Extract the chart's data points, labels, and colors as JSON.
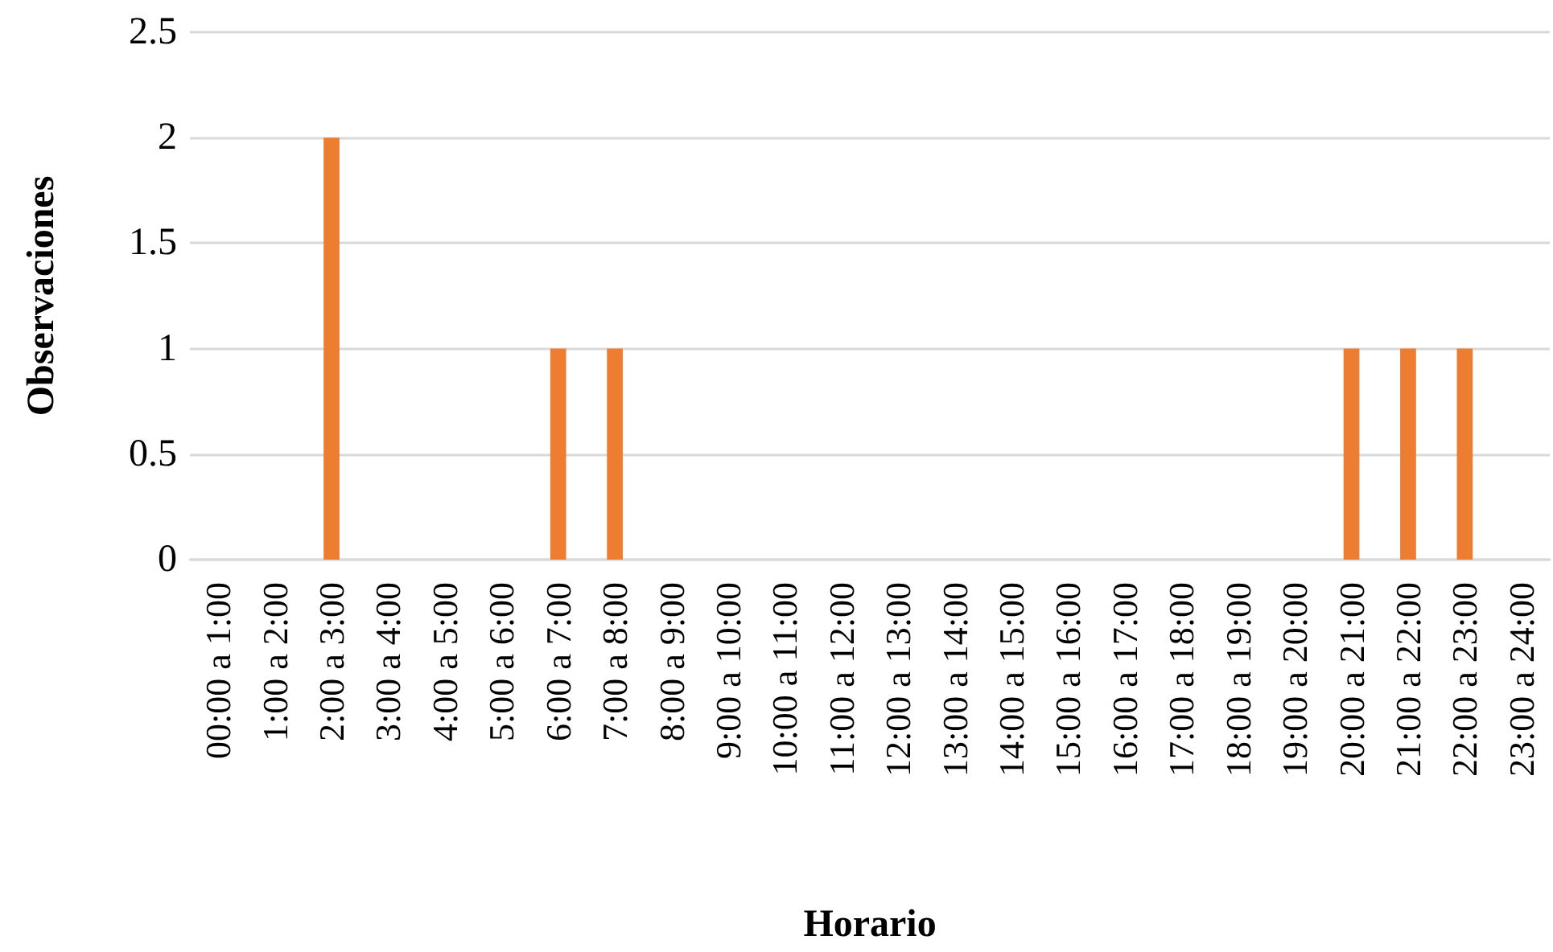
{
  "chart_data": {
    "type": "bar",
    "xlabel": "Horario",
    "ylabel": "Observaciones",
    "categories": [
      "00:00 a 1:00",
      "1:00 a 2:00",
      "2:00 a 3:00",
      "3:00 a 4:00",
      "4:00 a 5:00",
      "5:00 a 6:00",
      "6:00 a 7:00",
      "7:00 a 8:00",
      "8:00 a 9:00",
      "9:00 a 10:00",
      "10:00 a 11:00",
      "11:00 a 12:00",
      "12:00 a 13:00",
      "13:00 a 14:00",
      "14:00 a 15:00",
      "15:00 a 16:00",
      "16:00 a 17:00",
      "17:00 a 18:00",
      "18:00 a 19:00",
      "19:00 a 20:00",
      "20:00 a 21:00",
      "21:00 a 22:00",
      "22:00 a 23:00",
      "23:00 a 24:00"
    ],
    "values": [
      0,
      0,
      2,
      0,
      0,
      0,
      1,
      1,
      0,
      0,
      0,
      0,
      0,
      0,
      0,
      0,
      0,
      0,
      0,
      0,
      1,
      1,
      1,
      0
    ],
    "color": "#ed7d31",
    "ylim": [
      0,
      2.5
    ],
    "yticks": [
      0,
      0.5,
      1,
      1.5,
      2,
      2.5
    ],
    "grid": "y"
  }
}
